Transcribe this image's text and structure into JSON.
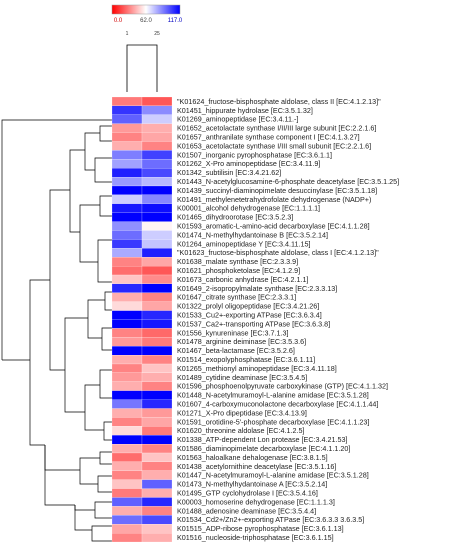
{
  "chart_data": {
    "type": "heatmap",
    "title": "",
    "xlabel": "",
    "ylabel": "",
    "colorbar": {
      "ticks": [
        "0.0",
        "62.0",
        "117.0"
      ],
      "low_color": "#ff0000",
      "mid_color": "#ffffff",
      "high_color": "#0000ff",
      "range": [
        0,
        117
      ]
    },
    "columns": [
      "1",
      "25"
    ],
    "rows": [
      {
        "label": "\"K01624_fructose-bisphosphate aldolase, class II [EC:4.1.2.13]\"",
        "values": [
          28,
          20
        ]
      },
      {
        "label": "K01451_hippurate hydrolase [EC:3.5.1.32]",
        "values": [
          105,
          85
        ]
      },
      {
        "label": "K01269_aminopeptidase [EC:3.4.11.-]",
        "values": [
          95,
          70
        ]
      },
      {
        "label": "K01652_acetolactate synthase I/II/III large subunit [EC:2.2.1.6]",
        "values": [
          35,
          40
        ]
      },
      {
        "label": "K01657_anthranilate synthase component I [EC:4.1.3.27]",
        "values": [
          30,
          38
        ]
      },
      {
        "label": "K01653_acetolactate synthase I/III small subunit [EC:2.2.1.6]",
        "values": [
          40,
          30
        ]
      },
      {
        "label": "K01507_inorganic pyrophosphatase [EC:3.6.1.1]",
        "values": [
          88,
          102
        ]
      },
      {
        "label": "K01262_X-Pro aminopeptidase [EC:3.4.11.9]",
        "values": [
          80,
          92
        ]
      },
      {
        "label": "K01342_subtilisin [EC:3.4.21.62]",
        "values": [
          110,
          100
        ]
      },
      {
        "label": "K01443_N-acetylglucosamine-6-phosphate deacetylase [EC:3.5.1.25]",
        "values": [
          82,
          75
        ]
      },
      {
        "label": "K01439_succinyl-diaminopimelate desuccinylase [EC:3.5.1.18]",
        "values": [
          117,
          117
        ]
      },
      {
        "label": "K01491_methylenetetrahydrofolate dehydrogenase (NADP+)",
        "values": [
          70,
          86
        ]
      },
      {
        "label": "K00001_alcohol dehydrogenase [EC:1.1.1.1]",
        "values": [
          112,
          114
        ]
      },
      {
        "label": "K01465_dihydroorotase [EC:3.5.2.3]",
        "values": [
          117,
          117
        ]
      },
      {
        "label": "K01593_aromatic-L-amino-acid decarboxylase [EC:4.1.1.28]",
        "values": [
          84,
          56
        ]
      },
      {
        "label": "K01474_N-methylhydantoinase B [EC:3.5.2.14]",
        "values": [
          92,
          70
        ]
      },
      {
        "label": "K01264_aminopeptidase Y [EC:3.4.11.15]",
        "values": [
          104,
          72
        ]
      },
      {
        "label": "\"K01623_fructose-bisphosphate aldolase, class I [EC:4.1.2.13]\"",
        "values": [
          78,
          110
        ]
      },
      {
        "label": "K01638_malate synthase [EC:2.3.3.9]",
        "values": [
          30,
          38
        ]
      },
      {
        "label": "K01621_phosphoketolase [EC:4.1.2.9]",
        "values": [
          25,
          20
        ]
      },
      {
        "label": "K01673_carbonic anhydrase [EC:4.2.1.1]",
        "values": [
          45,
          32
        ]
      },
      {
        "label": "K01649_2-isopropylmalate synthase [EC:2.3.3.13]",
        "values": [
          108,
          117
        ]
      },
      {
        "label": "K01647_citrate synthase [EC:2.3.3.1]",
        "values": [
          40,
          30
        ]
      },
      {
        "label": "K01322_prolyl oligopeptidase [EC:3.4.21.26]",
        "values": [
          50,
          38
        ]
      },
      {
        "label": "K01533_Cu2+-exporting ATPase [EC:3.6.3.4]",
        "values": [
          117,
          108
        ]
      },
      {
        "label": "K01537_Ca2+-transporting ATPase [EC:3.6.3.8]",
        "values": [
          117,
          112
        ]
      },
      {
        "label": "K01556_kynureninase [EC:3.7.1.3]",
        "values": [
          30,
          24
        ]
      },
      {
        "label": "K01478_arginine deiminase [EC:3.5.3.6]",
        "values": [
          35,
          28
        ]
      },
      {
        "label": "K01467_beta-lactamase [EC:3.5.2.6]",
        "values": [
          117,
          117
        ]
      },
      {
        "label": "K01514_exopolyphosphatase [EC:3.6.1.11]",
        "values": [
          40,
          30
        ]
      },
      {
        "label": "K01265_methionyl aminopeptidase [EC:3.4.11.18]",
        "values": [
          30,
          45
        ]
      },
      {
        "label": "K01489_cytidine deaminase [EC:3.5.4.5]",
        "values": [
          35,
          40
        ]
      },
      {
        "label": "K01596_phosphoenolpyruvate carboxykinase (GTP) [EC:4.1.1.32]",
        "values": [
          40,
          30
        ]
      },
      {
        "label": "K01448_N-acetylmuramoyl-L-alanine amidase [EC:3.5.1.28]",
        "values": [
          117,
          117
        ]
      },
      {
        "label": "K01607_4-carboxymuconolactone decarboxylase [EC:4.1.1.44]",
        "values": [
          90,
          108
        ]
      },
      {
        "label": "K01271_X-Pro dipeptidase [EC:3.4.13.9]",
        "values": [
          40,
          35
        ]
      },
      {
        "label": "K01591_orotidine-5'-phosphate decarboxylase [EC:4.1.1.23]",
        "values": [
          30,
          38
        ]
      },
      {
        "label": "K01620_threonine aldolase [EC:4.1.2.5]",
        "values": [
          50,
          28
        ]
      },
      {
        "label": "K01338_ATP-dependent Lon protease [EC:3.4.21.53]",
        "values": [
          117,
          117
        ]
      },
      {
        "label": "K01586_diaminopimelate decarboxylase [EC:4.1.1.20]",
        "values": [
          40,
          30
        ]
      },
      {
        "label": "K01563_haloalkane dehalogenase [EC:3.8.1.5]",
        "values": [
          25,
          45
        ]
      },
      {
        "label": "K01438_acetylornithine deacetylase [EC:3.5.1.16]",
        "values": [
          40,
          30
        ]
      },
      {
        "label": "K01447_N-acetylmuramoyl-L-alanine amidase [EC:3.5.1.28]",
        "values": [
          30,
          40
        ]
      },
      {
        "label": "K01473_N-methylhydantoinase A [EC:3.5.2.14]",
        "values": [
          45,
          95
        ]
      },
      {
        "label": "K01495_GTP cyclohydrolase I [EC:3.5.4.16]",
        "values": [
          28,
          40
        ]
      },
      {
        "label": "K00003_homoserine dehydrogenase [EC:1.1.1.3]",
        "values": [
          95,
          108
        ]
      },
      {
        "label": "K01488_adenosine deaminase [EC:3.5.4.4]",
        "values": [
          40,
          30
        ]
      },
      {
        "label": "K01534_Cd2+/Zn2+-exporting ATPase [EC:3.6.3.3 3.6.3.5]",
        "values": [
          92,
          100
        ]
      },
      {
        "label": "K01515_ADP-ribose pyrophosphatase [EC:3.6.1.13]",
        "values": [
          38,
          45
        ]
      },
      {
        "label": "K01516_nucleoside-triphosphatase [EC:3.6.1.15]",
        "values": [
          30,
          40
        ]
      }
    ],
    "legend": "top-left",
    "grid": false
  }
}
